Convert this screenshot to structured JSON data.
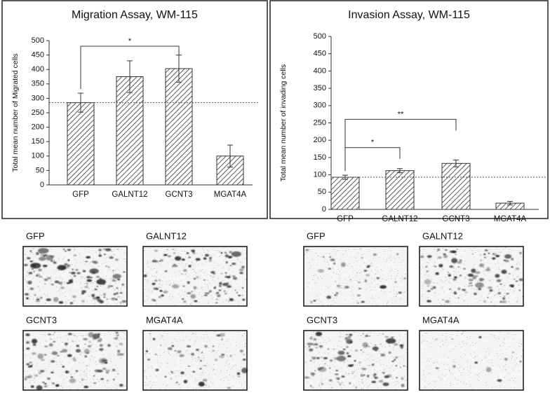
{
  "chart_data": [
    {
      "type": "bar",
      "title": "Migration Assay, WM-115",
      "y_label": "Total mean number of Migrated cells",
      "categories": [
        "GFP",
        "GALNT12",
        "GCNT3",
        "MGAT4A"
      ],
      "values": [
        285,
        375,
        403,
        100
      ],
      "errors": [
        33,
        55,
        47,
        38
      ],
      "reference_line": 285,
      "ylim": [
        0,
        500
      ],
      "yticks": [
        0,
        50,
        100,
        150,
        200,
        250,
        300,
        350,
        400,
        450,
        500
      ],
      "annotations": [
        {
          "text": "*",
          "from": "GFP",
          "to": "GCNT3"
        }
      ]
    },
    {
      "type": "bar",
      "title": "Invasion Assay, WM-115",
      "y_label": "Total mean number of invading cells",
      "categories": [
        "GFP",
        "GALNT12",
        "GCNT3",
        "MGAT4A"
      ],
      "values": [
        93,
        112,
        133,
        18
      ],
      "errors": [
        6,
        6,
        10,
        5
      ],
      "reference_line": 93,
      "ylim": [
        0,
        500
      ],
      "yticks": [
        0,
        50,
        100,
        150,
        200,
        250,
        300,
        350,
        400,
        450,
        500
      ],
      "annotations": [
        {
          "text": "*",
          "from": "GFP",
          "to": "GALNT12"
        },
        {
          "text": "**",
          "from": "GFP",
          "to": "GCNT3"
        }
      ]
    }
  ],
  "image_panels": [
    [
      "GFP",
      "GALNT12",
      "GCNT3",
      "MGAT4A"
    ],
    [
      "GFP",
      "GALNT12",
      "GCNT3",
      "MGAT4A"
    ]
  ]
}
